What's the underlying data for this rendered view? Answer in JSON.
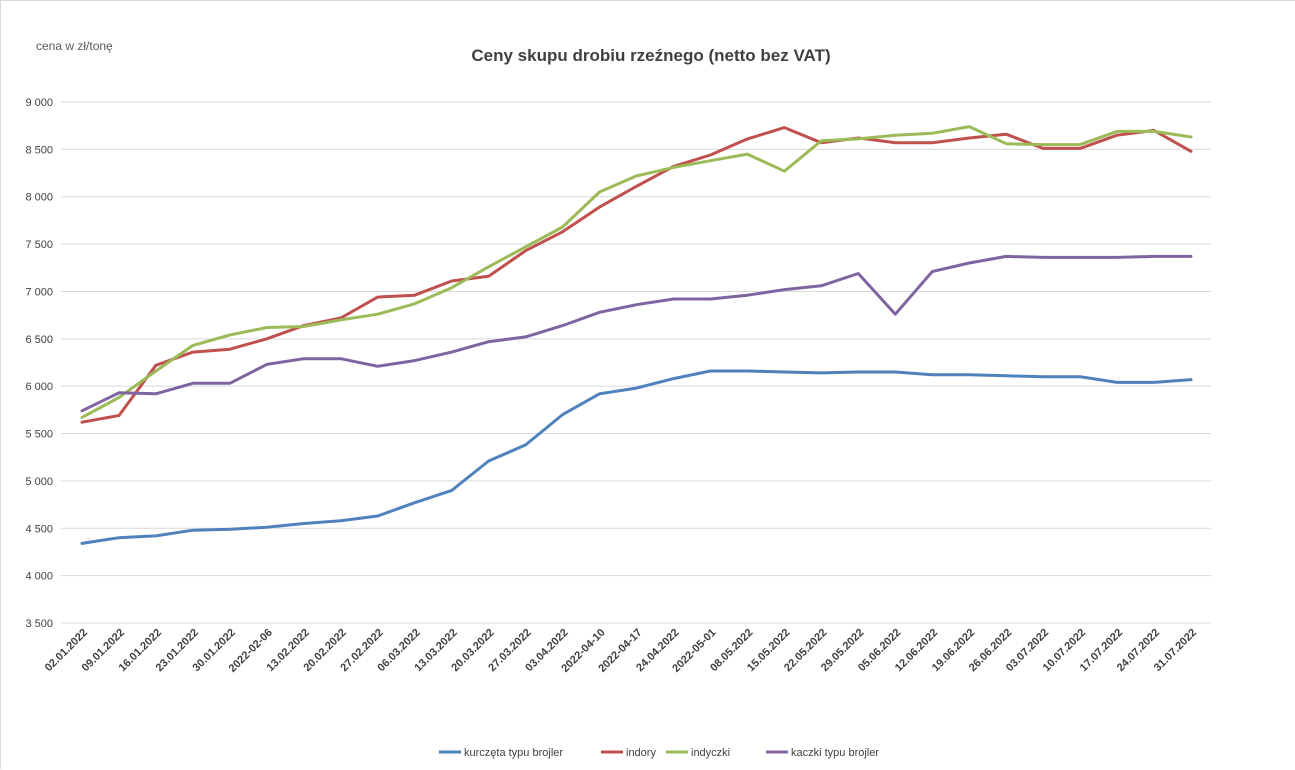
{
  "chart_data": {
    "type": "line",
    "title": "Ceny skupu drobiu rzeźnego (netto bez VAT)",
    "ylabel": "cena w zł/tonę",
    "xlabel": "",
    "ylim": [
      3500,
      9000
    ],
    "ystep": 500,
    "ytick_labels": [
      "3 500",
      "4 000",
      "4 500",
      "5 000",
      "5 500",
      "6 000",
      "6 500",
      "7 000",
      "7 500",
      "8 000",
      "8 500",
      "9 000"
    ],
    "grid": true,
    "legend_position": "bottom",
    "categories": [
      "02.01.2022",
      "09.01.2022",
      "16.01.2022",
      "23.01.2022",
      "30.01.2022",
      "2022-02-06",
      "13.02.2022",
      "20.02.2022",
      "27.02.2022",
      "06.03.2022",
      "13.03.2022",
      "20.03.2022",
      "27.03.2022",
      "03.04.2022",
      "2022-04-10",
      "2022-04-17",
      "24.04.2022",
      "2022-05-01",
      "08.05.2022",
      "15.05.2022",
      "22.05.2022",
      "29.05.2022",
      "05.06.2022",
      "12.06.2022",
      "19.06.2022",
      "26.06.2022",
      "03.07.2022",
      "10.07.2022",
      "17.07.2022",
      "24.07.2022",
      "31.07.2022"
    ],
    "series": [
      {
        "name": "kurczęta typu brojler",
        "color": "#4f81bd",
        "values": [
          4340,
          4400,
          4420,
          4480,
          4490,
          4510,
          4550,
          4580,
          4630,
          4770,
          4900,
          5210,
          5380,
          5700,
          5920,
          5980,
          6080,
          6160,
          6160,
          6150,
          6140,
          6150,
          6150,
          6120,
          6120,
          6110,
          6100,
          6100,
          6040,
          6040,
          6070
        ]
      },
      {
        "name": "indory",
        "color": "#c0504d",
        "values": [
          5620,
          5690,
          6220,
          6360,
          6390,
          6500,
          6640,
          6720,
          6940,
          6960,
          7110,
          7160,
          7430,
          7630,
          7890,
          8110,
          8320,
          8440,
          8610,
          8730,
          8570,
          8620,
          8570,
          8570,
          8620,
          8660,
          8510,
          8510,
          8650,
          8700,
          8480
        ]
      },
      {
        "name": "indyczki",
        "color": "#9bbb59",
        "values": [
          5670,
          5880,
          6160,
          6430,
          6540,
          6620,
          6630,
          6700,
          6760,
          6870,
          7040,
          7260,
          7470,
          7680,
          8050,
          8220,
          8310,
          8380,
          8450,
          8270,
          8590,
          8610,
          8650,
          8670,
          8740,
          8560,
          8550,
          8550,
          8690,
          8690,
          8630
        ]
      },
      {
        "name": "kaczki typu brojler",
        "color": "#8064a2",
        "values": [
          5740,
          5930,
          5920,
          6030,
          6030,
          6230,
          6290,
          6290,
          6210,
          6270,
          6360,
          6470,
          6520,
          6640,
          6780,
          6860,
          6920,
          6920,
          6960,
          7020,
          7060,
          7190,
          6760,
          7210,
          7300,
          7370,
          7360,
          7360,
          7360,
          7370,
          7370
        ]
      }
    ]
  }
}
